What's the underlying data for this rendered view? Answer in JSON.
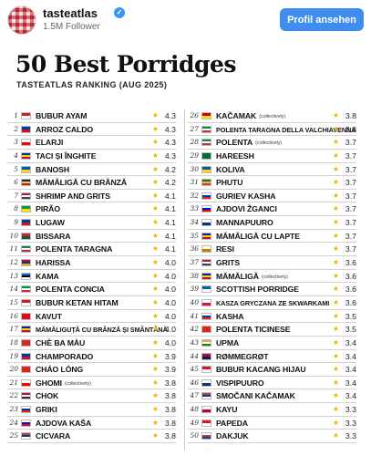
{
  "header": {
    "account": "tasteatlas",
    "verified_icon": "verified-badge-icon",
    "followers": "1.5M Follower",
    "profile_button": "Profil ansehen"
  },
  "poster": {
    "title": "50 Best Porridges",
    "subtitle": "TASTEATLAS RANKING (AUG 2025)"
  },
  "colors": {
    "accent": "#3d8ef0",
    "star": "#f0b400",
    "brand": "#c0232c"
  },
  "ranking_left": [
    {
      "rank": "1",
      "name": "BUBUR AYAM",
      "note": "",
      "rating": "4.3",
      "flag": [
        "#d71920",
        "#ffffff"
      ]
    },
    {
      "rank": "2",
      "name": "ARROZ CALDO",
      "note": "",
      "rating": "4.3",
      "flag": [
        "#0038a8",
        "#ce1126"
      ]
    },
    {
      "rank": "3",
      "name": "ELARJI",
      "note": "",
      "rating": "4.3",
      "flag": [
        "#ffffff",
        "#ff0000"
      ]
    },
    {
      "rank": "4",
      "name": "TACI ȘI ÎNGHITE",
      "note": "",
      "rating": "4.3",
      "flag": [
        "#002b7f",
        "#fcd116",
        "#ce1126"
      ]
    },
    {
      "rank": "5",
      "name": "BANOSH",
      "note": "",
      "rating": "4.2",
      "flag": [
        "#0057b7",
        "#ffd700"
      ]
    },
    {
      "rank": "6",
      "name": "MĂMĂLIGĂ CU BRÂNZĂ",
      "note": "",
      "rating": "4.2",
      "flag": [
        "#002b7f",
        "#fcd116",
        "#ce1126"
      ]
    },
    {
      "rank": "7",
      "name": "SHRIMP AND GRITS",
      "note": "",
      "rating": "4.1",
      "flag": [
        "#b22234",
        "#ffffff",
        "#3c3b6e"
      ]
    },
    {
      "rank": "8",
      "name": "PIRÃO",
      "note": "",
      "rating": "4.1",
      "flag": [
        "#009c3b",
        "#ffdf00"
      ]
    },
    {
      "rank": "9",
      "name": "LUGAW",
      "note": "",
      "rating": "4.1",
      "flag": [
        "#0038a8",
        "#ce1126"
      ]
    },
    {
      "rank": "10",
      "name": "BISSARA",
      "note": "",
      "rating": "4.1",
      "flag": [
        "#c1272d",
        "#006233"
      ]
    },
    {
      "rank": "11",
      "name": "POLENTA TARAGNA",
      "note": "",
      "rating": "4.1",
      "flag": [
        "#009246",
        "#ffffff",
        "#ce2b37"
      ]
    },
    {
      "rank": "12",
      "name": "HARISSA",
      "note": "",
      "rating": "4.0",
      "flag": [
        "#d90012",
        "#0033a0",
        "#f2a800"
      ]
    },
    {
      "rank": "13",
      "name": "KAMA",
      "note": "",
      "rating": "4.0",
      "flag": [
        "#0072ce",
        "#000000",
        "#ffffff"
      ]
    },
    {
      "rank": "14",
      "name": "POLENTA CONCIA",
      "note": "",
      "rating": "4.0",
      "flag": [
        "#009246",
        "#ffffff",
        "#ce2b37"
      ]
    },
    {
      "rank": "15",
      "name": "BUBUR KETAN HITAM",
      "note": "",
      "rating": "4.0",
      "flag": [
        "#d71920",
        "#ffffff"
      ]
    },
    {
      "rank": "16",
      "name": "KAVUT",
      "note": "",
      "rating": "4.0",
      "flag": [
        "#e30a17",
        "#e30a17"
      ]
    },
    {
      "rank": "17",
      "name": "MĂMĂLIGUȚĂ CU BRÂNZĂ ȘI SMÂNTÂNĂ",
      "note": "",
      "rating": "4.0",
      "flag": [
        "#002b7f",
        "#fcd116",
        "#ce1126"
      ]
    },
    {
      "rank": "18",
      "name": "CHÈ BA MÀU",
      "note": "",
      "rating": "4.0",
      "flag": [
        "#da251d",
        "#da251d"
      ]
    },
    {
      "rank": "19",
      "name": "CHAMPORADO",
      "note": "",
      "rating": "3.9",
      "flag": [
        "#0038a8",
        "#ce1126"
      ]
    },
    {
      "rank": "20",
      "name": "CHÁO LÒNG",
      "note": "",
      "rating": "3.9",
      "flag": [
        "#da251d",
        "#da251d"
      ]
    },
    {
      "rank": "21",
      "name": "GHOMI",
      "note": "(collectively)",
      "rating": "3.8",
      "flag": [
        "#ffffff",
        "#ff0000"
      ]
    },
    {
      "rank": "22",
      "name": "CHOK",
      "note": "",
      "rating": "3.8",
      "flag": [
        "#a51931",
        "#f4f5f8",
        "#2d2a4a"
      ]
    },
    {
      "rank": "23",
      "name": "GRIKI",
      "note": "",
      "rating": "3.8",
      "flag": [
        "#ffffff",
        "#0039a6",
        "#d52b1e"
      ]
    },
    {
      "rank": "24",
      "name": "AJDOVA KAŠA",
      "note": "",
      "rating": "3.8",
      "flag": [
        "#ffffff",
        "#0000ff",
        "#ff0000"
      ]
    },
    {
      "rank": "25",
      "name": "CICVARA",
      "note": "",
      "rating": "3.8",
      "flag": [
        "#c6363c",
        "#0c4076",
        "#ffffff"
      ]
    }
  ],
  "ranking_right": [
    {
      "rank": "26",
      "name": "KAČAMAK",
      "note": "(collectively)",
      "rating": "3.8",
      "flag": [
        "#d20000",
        "#ffe600"
      ]
    },
    {
      "rank": "27",
      "name": "POLENTA TARAGNA DELLA VALCHIAVENNA",
      "note": "",
      "rating": "3.8",
      "flag": [
        "#009246",
        "#ffffff",
        "#ce2b37"
      ]
    },
    {
      "rank": "28",
      "name": "POLENTA",
      "note": "(collectively)",
      "rating": "3.7",
      "flag": [
        "#009246",
        "#ffffff",
        "#ce2b37"
      ]
    },
    {
      "rank": "29",
      "name": "HAREESH",
      "note": "",
      "rating": "3.7",
      "flag": [
        "#006c35",
        "#006c35"
      ]
    },
    {
      "rank": "30",
      "name": "KOLIVA",
      "note": "",
      "rating": "3.7",
      "flag": [
        "#0057b7",
        "#ffd700"
      ]
    },
    {
      "rank": "31",
      "name": "PHUTU",
      "note": "",
      "rating": "3.7",
      "flag": [
        "#007a4d",
        "#ffb612",
        "#de3831"
      ]
    },
    {
      "rank": "32",
      "name": "GURIEV KASHA",
      "note": "",
      "rating": "3.7",
      "flag": [
        "#ffffff",
        "#0039a6",
        "#d52b1e"
      ]
    },
    {
      "rank": "33",
      "name": "AJDOVI ŽGANCI",
      "note": "",
      "rating": "3.7",
      "flag": [
        "#ffffff",
        "#0000ff",
        "#ff0000"
      ]
    },
    {
      "rank": "34",
      "name": "MANNAPUURO",
      "note": "",
      "rating": "3.7",
      "flag": [
        "#ffffff",
        "#003580"
      ]
    },
    {
      "rank": "35",
      "name": "MĂMĂLIGĂ CU LAPTE",
      "note": "",
      "rating": "3.7",
      "flag": [
        "#002b7f",
        "#fcd116",
        "#ce1126"
      ]
    },
    {
      "rank": "36",
      "name": "RESI",
      "note": "",
      "rating": "3.7",
      "flag": [
        "#ffffff",
        "#d57800"
      ]
    },
    {
      "rank": "37",
      "name": "GRITS",
      "note": "",
      "rating": "3.6",
      "flag": [
        "#b22234",
        "#ffffff",
        "#3c3b6e"
      ]
    },
    {
      "rank": "38",
      "name": "MĂMĂLIGĂ",
      "note": "(collectively)",
      "rating": "3.6",
      "flag": [
        "#002b7f",
        "#fcd116",
        "#ce1126"
      ]
    },
    {
      "rank": "39",
      "name": "SCOTTISH PORRIDGE",
      "note": "",
      "rating": "3.6",
      "flag": [
        "#005eb8",
        "#ffffff"
      ]
    },
    {
      "rank": "40",
      "name": "KASZA GRYCZANA ZE SKWARKAMI",
      "note": "",
      "rating": "3.6",
      "flag": [
        "#ffffff",
        "#dc143c"
      ]
    },
    {
      "rank": "41",
      "name": "KASHA",
      "note": "",
      "rating": "3.5",
      "flag": [
        "#ffffff",
        "#0039a6",
        "#d52b1e"
      ]
    },
    {
      "rank": "42",
      "name": "POLENTA TICINESE",
      "note": "",
      "rating": "3.5",
      "flag": [
        "#da291c",
        "#da291c"
      ]
    },
    {
      "rank": "43",
      "name": "UPMA",
      "note": "",
      "rating": "3.4",
      "flag": [
        "#ff9933",
        "#ffffff",
        "#138808"
      ]
    },
    {
      "rank": "44",
      "name": "RØMMEGRØT",
      "note": "",
      "rating": "3.4",
      "flag": [
        "#ba0c2f",
        "#00205b"
      ]
    },
    {
      "rank": "45",
      "name": "BUBUR KACANG HIJAU",
      "note": "",
      "rating": "3.4",
      "flag": [
        "#d71920",
        "#ffffff"
      ]
    },
    {
      "rank": "46",
      "name": "VISPIPUURO",
      "note": "",
      "rating": "3.4",
      "flag": [
        "#ffffff",
        "#003580"
      ]
    },
    {
      "rank": "47",
      "name": "SMOČANI KAČAMAK",
      "note": "",
      "rating": "3.4",
      "flag": [
        "#c6363c",
        "#0c4076",
        "#ffffff"
      ]
    },
    {
      "rank": "48",
      "name": "KAYU",
      "note": "",
      "rating": "3.3",
      "flag": [
        "#ffffff",
        "#bc002d"
      ]
    },
    {
      "rank": "49",
      "name": "PAPEDA",
      "note": "",
      "rating": "3.3",
      "flag": [
        "#d71920",
        "#ffffff"
      ]
    },
    {
      "rank": "50",
      "name": "DAKJUK",
      "note": "",
      "rating": "3.3",
      "flag": [
        "#ffffff",
        "#cd2e3a",
        "#0047a0"
      ]
    }
  ]
}
